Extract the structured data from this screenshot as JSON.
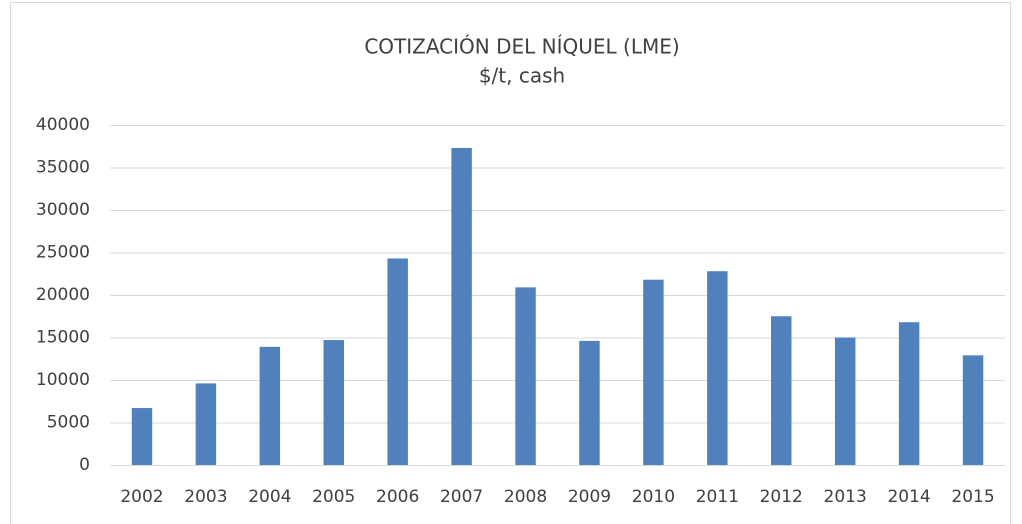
{
  "chart_data": {
    "type": "bar",
    "title": "COTIZACIÓN DEL NÍQUEL (LME)",
    "subtitle": "$/t, cash",
    "categories": [
      "2002",
      "2003",
      "2004",
      "2005",
      "2006",
      "2007",
      "2008",
      "2009",
      "2010",
      "2011",
      "2012",
      "2013",
      "2014",
      "2015"
    ],
    "values": [
      6700,
      9600,
      13900,
      14700,
      24300,
      37300,
      20900,
      14600,
      21800,
      22800,
      17500,
      15000,
      16800,
      12900
    ],
    "color": "#4f81bd",
    "ylim": [
      0,
      40000
    ],
    "yticks": [
      0,
      5000,
      10000,
      15000,
      20000,
      25000,
      30000,
      35000,
      40000
    ],
    "grid": true
  }
}
